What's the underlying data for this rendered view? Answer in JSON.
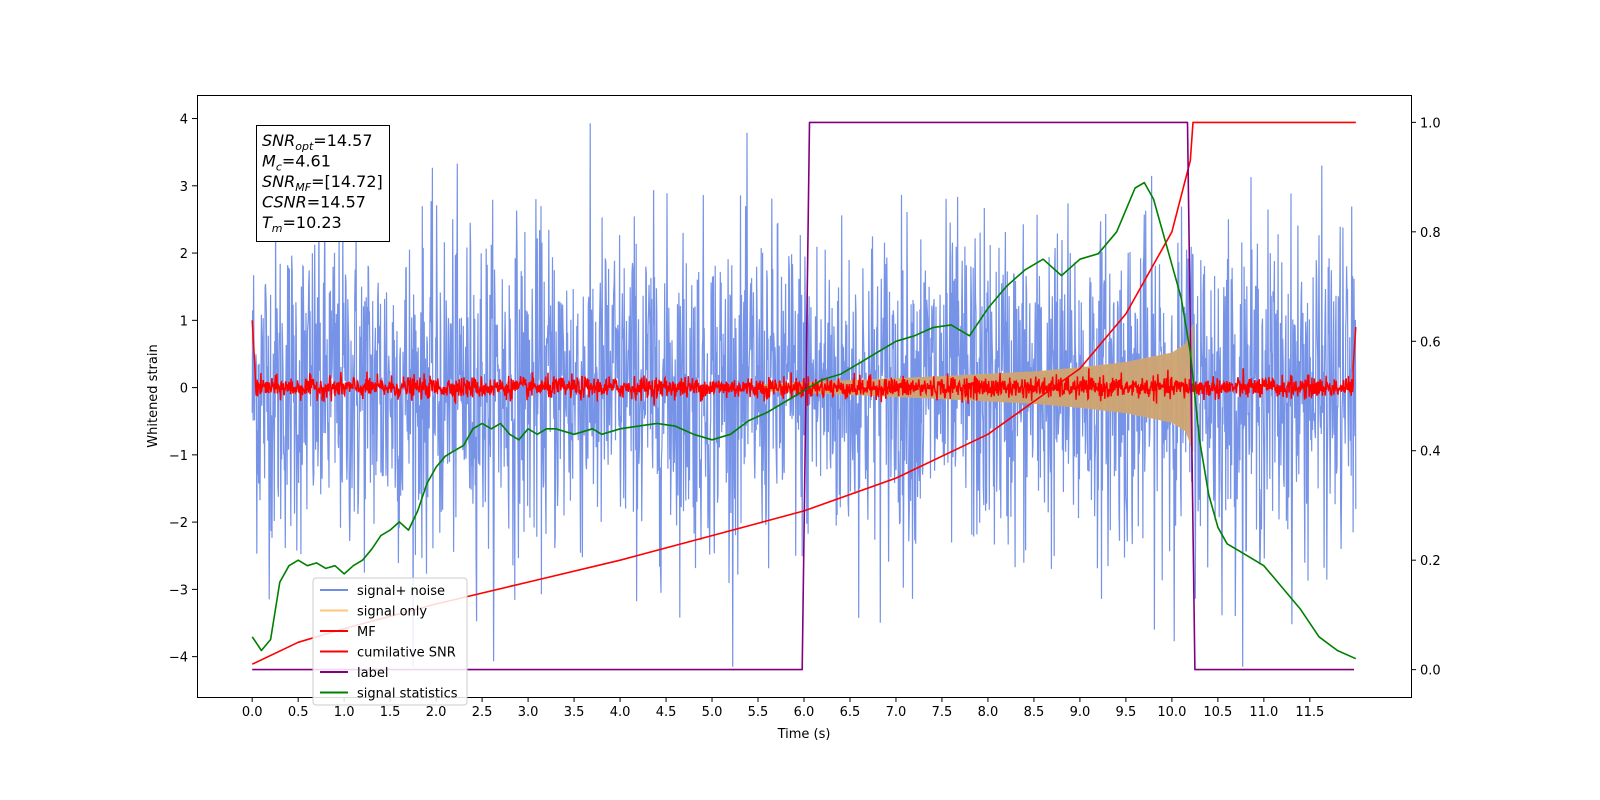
{
  "chart_data": {
    "type": "line",
    "xlabel": "Time (s)",
    "ylabel": "Whitened strain",
    "xlim": [
      -0.6,
      12.6
    ],
    "ylim": [
      -4.6,
      4.35
    ],
    "y2lim": [
      -0.05,
      1.05
    ],
    "x_ticks": [
      0.0,
      0.5,
      1.0,
      1.5,
      2.0,
      2.5,
      3.0,
      3.5,
      4.0,
      4.5,
      5.0,
      5.5,
      6.0,
      6.5,
      7.0,
      7.5,
      8.0,
      8.5,
      9.0,
      9.5,
      10.0,
      10.5,
      11.0,
      11.5
    ],
    "x_tick_labels": [
      "0.0",
      "0.5",
      "1.0",
      "1.5",
      "2.0",
      "2.5",
      "3.0",
      "3.5",
      "4.0",
      "4.5",
      "5.0",
      "5.5",
      "6.0",
      "6.5",
      "7.0",
      "7.5",
      "8.0",
      "8.5",
      "9.0",
      "9.5",
      "10.0",
      "10.5",
      "11.0",
      "11.5"
    ],
    "y_ticks": [
      -4,
      -3,
      -2,
      -1,
      0,
      1,
      2,
      3,
      4
    ],
    "y_tick_labels": [
      "−4",
      "−3",
      "−2",
      "−1",
      "0",
      "1",
      "2",
      "3",
      "4"
    ],
    "y2_ticks": [
      0.0,
      0.2,
      0.4,
      0.6,
      0.8,
      1.0
    ],
    "y2_tick_labels": [
      "0.0",
      "0.2",
      "0.4",
      "0.6",
      "0.8",
      "1.0"
    ],
    "legend_position": "lower-left",
    "annotation": [
      {
        "base": "SNR",
        "sub": "opt",
        "rest": "=14.57"
      },
      {
        "base": "M",
        "sub": "c",
        "rest": "=4.61"
      },
      {
        "base": "SNR",
        "sub": "MF",
        "rest": "=[14.72]"
      },
      {
        "base": "CSNR",
        "sub": "",
        "rest": "=14.57"
      },
      {
        "base": "T",
        "sub": "m",
        "rest": "=10.23"
      }
    ],
    "series": [
      {
        "name": "signal+ noise",
        "color": "#6f8de6",
        "axis": "left",
        "kind": "noise",
        "x_range": [
          0.0,
          12.0
        ],
        "amplitude": 1.2
      },
      {
        "name": "signal only",
        "color": "#ffc77a",
        "axis": "left",
        "kind": "chirp_envelope",
        "start": 5.5,
        "end": 10.23,
        "envelope": [
          [
            5.5,
            0.05
          ],
          [
            6.5,
            0.11
          ],
          [
            7.5,
            0.17
          ],
          [
            8.5,
            0.24
          ],
          [
            9.0,
            0.3
          ],
          [
            9.5,
            0.38
          ],
          [
            10.0,
            0.52
          ],
          [
            10.15,
            0.65
          ],
          [
            10.23,
            0.95
          ]
        ]
      },
      {
        "name": "MF",
        "color": "#ff0000",
        "axis": "left",
        "kind": "noise",
        "x_range": [
          0.0,
          12.0
        ],
        "amplitude": 0.08,
        "edge_points": [
          [
            0.0,
            1.0
          ],
          [
            0.03,
            0.3
          ],
          [
            11.97,
            0.3
          ],
          [
            12.0,
            0.9
          ]
        ]
      },
      {
        "name": "cumilative SNR",
        "color": "#ff0000",
        "axis": "right",
        "points": [
          [
            0.0,
            0.01
          ],
          [
            0.5,
            0.05
          ],
          [
            1.0,
            0.075
          ],
          [
            2.0,
            0.12
          ],
          [
            3.0,
            0.16
          ],
          [
            4.0,
            0.2
          ],
          [
            5.0,
            0.245
          ],
          [
            6.0,
            0.29
          ],
          [
            7.0,
            0.35
          ],
          [
            8.0,
            0.43
          ],
          [
            9.0,
            0.55
          ],
          [
            9.5,
            0.65
          ],
          [
            10.0,
            0.8
          ],
          [
            10.2,
            0.93
          ],
          [
            10.23,
            1.0
          ],
          [
            12.0,
            1.0
          ]
        ]
      },
      {
        "name": "label",
        "color": "#800080",
        "axis": "right",
        "points": [
          [
            0.0,
            0.0
          ],
          [
            5.98,
            0.0
          ],
          [
            6.06,
            1.0
          ],
          [
            10.17,
            1.0
          ],
          [
            10.25,
            0.0
          ],
          [
            11.98,
            0.0
          ]
        ]
      },
      {
        "name": "signal statistics",
        "color": "#008000",
        "axis": "right",
        "points": [
          [
            0.0,
            0.06
          ],
          [
            0.1,
            0.035
          ],
          [
            0.2,
            0.055
          ],
          [
            0.3,
            0.16
          ],
          [
            0.4,
            0.19
          ],
          [
            0.5,
            0.2
          ],
          [
            0.6,
            0.19
          ],
          [
            0.7,
            0.195
          ],
          [
            0.8,
            0.185
          ],
          [
            0.9,
            0.19
          ],
          [
            1.0,
            0.175
          ],
          [
            1.1,
            0.19
          ],
          [
            1.2,
            0.2
          ],
          [
            1.3,
            0.22
          ],
          [
            1.4,
            0.245
          ],
          [
            1.5,
            0.255
          ],
          [
            1.6,
            0.27
          ],
          [
            1.7,
            0.255
          ],
          [
            1.8,
            0.29
          ],
          [
            1.9,
            0.34
          ],
          [
            2.0,
            0.37
          ],
          [
            2.1,
            0.39
          ],
          [
            2.2,
            0.4
          ],
          [
            2.3,
            0.41
          ],
          [
            2.4,
            0.44
          ],
          [
            2.5,
            0.45
          ],
          [
            2.6,
            0.44
          ],
          [
            2.7,
            0.45
          ],
          [
            2.8,
            0.43
          ],
          [
            2.9,
            0.42
          ],
          [
            3.0,
            0.44
          ],
          [
            3.1,
            0.43
          ],
          [
            3.2,
            0.44
          ],
          [
            3.3,
            0.44
          ],
          [
            3.5,
            0.43
          ],
          [
            3.7,
            0.44
          ],
          [
            3.8,
            0.43
          ],
          [
            4.0,
            0.44
          ],
          [
            4.2,
            0.445
          ],
          [
            4.4,
            0.45
          ],
          [
            4.6,
            0.445
          ],
          [
            4.8,
            0.43
          ],
          [
            5.0,
            0.42
          ],
          [
            5.2,
            0.43
          ],
          [
            5.4,
            0.455
          ],
          [
            5.6,
            0.47
          ],
          [
            5.8,
            0.49
          ],
          [
            6.0,
            0.51
          ],
          [
            6.2,
            0.53
          ],
          [
            6.4,
            0.54
          ],
          [
            6.6,
            0.56
          ],
          [
            6.8,
            0.58
          ],
          [
            7.0,
            0.6
          ],
          [
            7.2,
            0.61
          ],
          [
            7.4,
            0.625
          ],
          [
            7.6,
            0.63
          ],
          [
            7.8,
            0.61
          ],
          [
            8.0,
            0.66
          ],
          [
            8.2,
            0.7
          ],
          [
            8.4,
            0.73
          ],
          [
            8.6,
            0.75
          ],
          [
            8.8,
            0.72
          ],
          [
            9.0,
            0.75
          ],
          [
            9.2,
            0.76
          ],
          [
            9.4,
            0.8
          ],
          [
            9.5,
            0.84
          ],
          [
            9.6,
            0.88
          ],
          [
            9.7,
            0.89
          ],
          [
            9.8,
            0.86
          ],
          [
            9.9,
            0.8
          ],
          [
            10.0,
            0.74
          ],
          [
            10.1,
            0.68
          ],
          [
            10.2,
            0.58
          ],
          [
            10.3,
            0.42
          ],
          [
            10.4,
            0.32
          ],
          [
            10.5,
            0.26
          ],
          [
            10.6,
            0.23
          ],
          [
            10.8,
            0.21
          ],
          [
            11.0,
            0.19
          ],
          [
            11.2,
            0.15
          ],
          [
            11.4,
            0.11
          ],
          [
            11.6,
            0.06
          ],
          [
            11.8,
            0.035
          ],
          [
            12.0,
            0.02
          ]
        ]
      }
    ]
  }
}
